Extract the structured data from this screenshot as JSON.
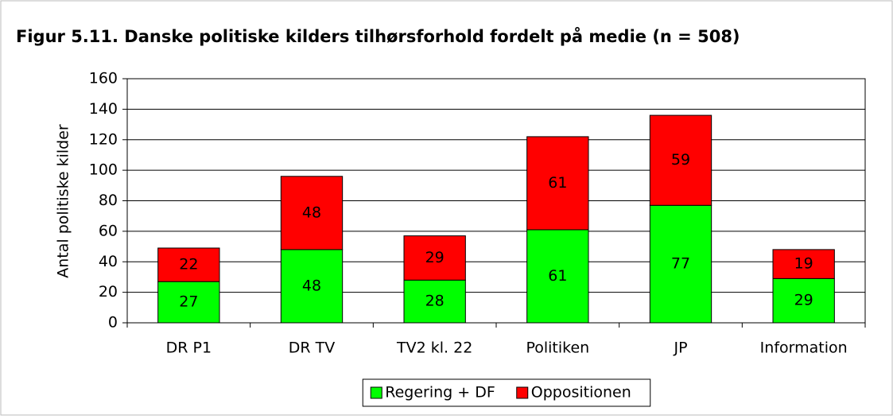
{
  "chart_data": {
    "type": "stacked_bar",
    "title": "Figur 5.11. Danske politiske kilders tilhørsforhold fordelt på medie (n = 508)",
    "ylabel": "Antal politiske kilder",
    "categories": [
      "DR P1",
      "DR TV",
      "TV2 kl. 22",
      "Politiken",
      "JP",
      "Information"
    ],
    "series": [
      {
        "name": "Regering + DF",
        "color": "#00ff00",
        "values": [
          27,
          48,
          28,
          61,
          77,
          29
        ]
      },
      {
        "name": "Oppositionen",
        "color": "#ff0000",
        "values": [
          22,
          48,
          29,
          61,
          59,
          19
        ]
      }
    ],
    "ylim": [
      0,
      160
    ],
    "yticks": [
      0,
      20,
      40,
      60,
      80,
      100,
      120,
      140,
      160
    ],
    "grid": true,
    "legend": "bottom"
  }
}
